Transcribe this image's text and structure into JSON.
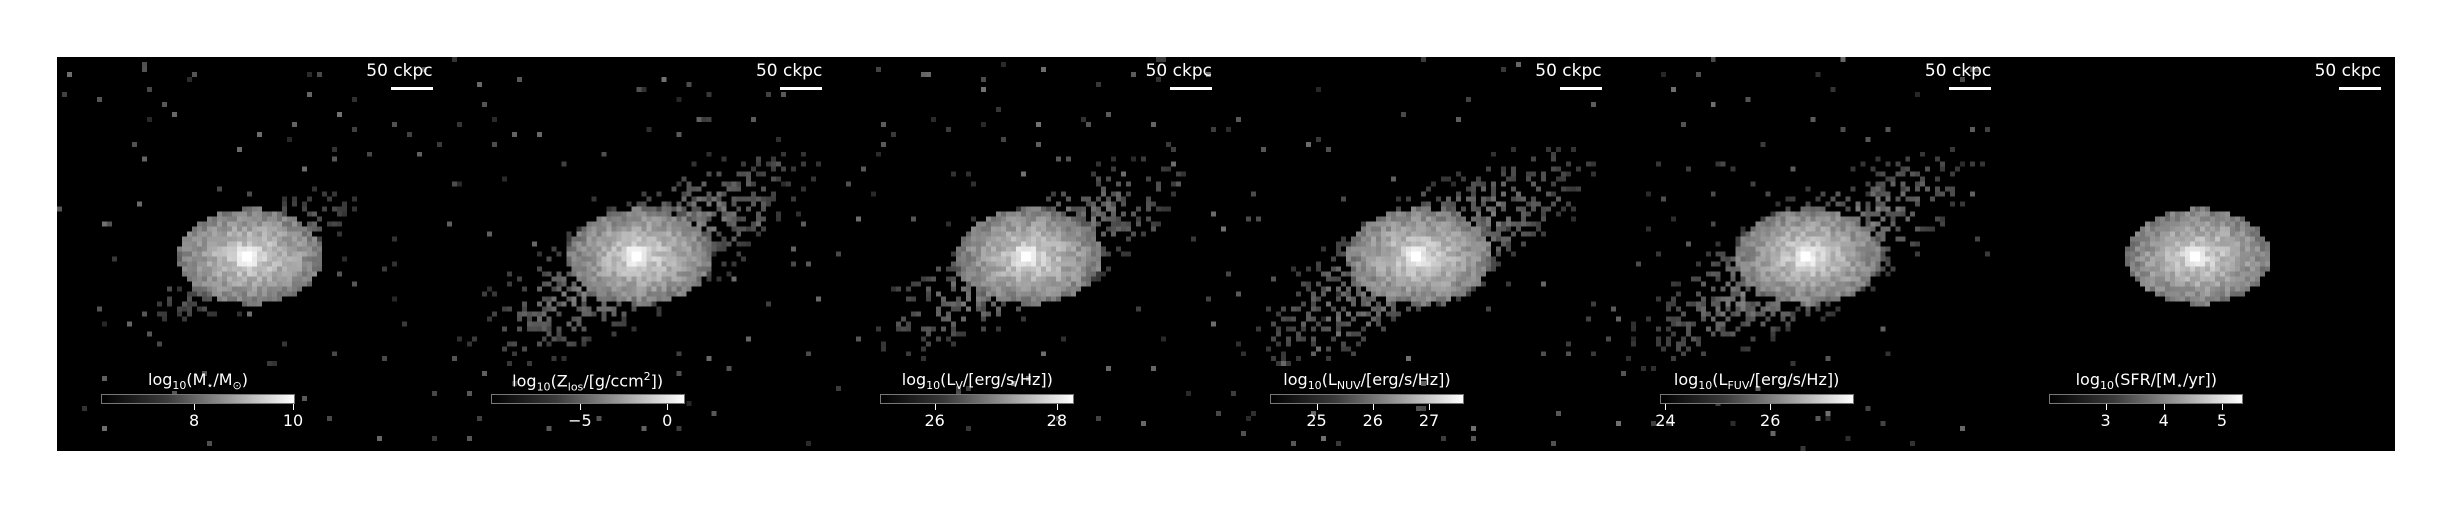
{
  "figure": {
    "panels": [
      {
        "name": "stellar-mass",
        "scalebar": "50 ckpc",
        "colorbar": {
          "prefix": "log",
          "base": "10",
          "quantity": "(M",
          "quantity_sub": "⋆",
          "quantity_rest": "/M",
          "unit_sub": "⊙",
          "suffix": ")",
          "ticks": [
            {
              "label": "8",
              "frac": 0.48
            },
            {
              "label": "10",
              "frac": 0.99
            }
          ]
        },
        "halo_extent": 0.55,
        "core_brightness": 1.0
      },
      {
        "name": "metallicity",
        "scalebar": "50 ckpc",
        "colorbar": {
          "prefix": "log",
          "base": "10",
          "quantity": "(Z",
          "quantity_sub": "los",
          "quantity_rest": "/[g/ccm",
          "unit_sup": "2",
          "suffix": "])",
          "ticks": [
            {
              "label": "−5",
              "frac": 0.46
            },
            {
              "label": "0",
              "frac": 0.91
            }
          ]
        },
        "halo_extent": 1.0,
        "core_brightness": 1.0
      },
      {
        "name": "v-band-luminosity",
        "scalebar": "50 ckpc",
        "colorbar": {
          "prefix": "log",
          "base": "10",
          "quantity": "(L",
          "quantity_sub": "V",
          "quantity_rest": "/[erg/s/Hz]",
          "suffix": ")",
          "ticks": [
            {
              "label": "26",
              "frac": 0.28
            },
            {
              "label": "28",
              "frac": 0.91
            }
          ]
        },
        "halo_extent": 0.9,
        "core_brightness": 0.9
      },
      {
        "name": "nuv-luminosity",
        "scalebar": "50 ckpc",
        "colorbar": {
          "prefix": "log",
          "base": "10",
          "quantity": "(L",
          "quantity_sub": "NUV",
          "quantity_rest": "/[erg/s/Hz]",
          "suffix": ")",
          "ticks": [
            {
              "label": "25",
              "frac": 0.24
            },
            {
              "label": "26",
              "frac": 0.53
            },
            {
              "label": "27",
              "frac": 0.82
            }
          ]
        },
        "halo_extent": 1.0,
        "core_brightness": 0.85
      },
      {
        "name": "fuv-luminosity",
        "scalebar": "50 ckpc",
        "colorbar": {
          "prefix": "log",
          "base": "10",
          "quantity": "(L",
          "quantity_sub": "FUV",
          "quantity_rest": "/[erg/s/Hz]",
          "suffix": ")",
          "ticks": [
            {
              "label": "24",
              "frac": 0.03
            },
            {
              "label": "26",
              "frac": 0.57
            }
          ]
        },
        "halo_extent": 1.0,
        "core_brightness": 0.85
      },
      {
        "name": "star-formation-rate",
        "scalebar": "50 ckpc",
        "colorbar": {
          "prefix": "log",
          "base": "10",
          "quantity": "(SFR/[M",
          "quantity_sub": "⋆",
          "quantity_rest": "/yr]",
          "suffix": ")",
          "ticks": [
            {
              "label": "3",
              "frac": 0.29
            },
            {
              "label": "4",
              "frac": 0.59
            },
            {
              "label": "5",
              "frac": 0.89
            }
          ]
        },
        "halo_extent": 0.12,
        "core_brightness": 1.0
      }
    ]
  }
}
